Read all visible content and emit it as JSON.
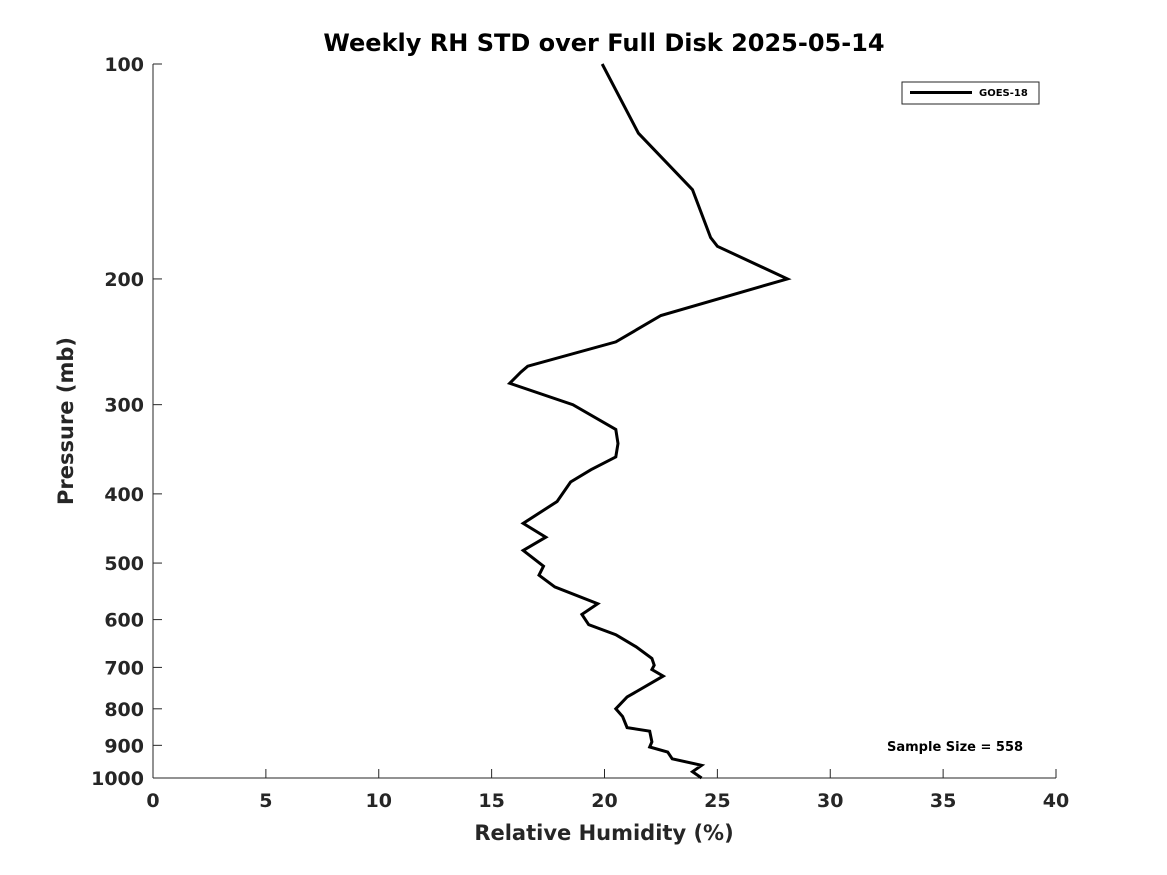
{
  "chart_data": {
    "type": "line",
    "title": "Weekly RH STD over Full Disk 2025-05-14",
    "xlabel": "Relative Humidity (%)",
    "ylabel": "Pressure (mb)",
    "xlim": [
      0,
      40
    ],
    "ylim": [
      100,
      1000
    ],
    "yscale": "log",
    "x_ticks": [
      {
        "value": 0,
        "label": "0"
      },
      {
        "value": 5,
        "label": "5"
      },
      {
        "value": 10,
        "label": "10"
      },
      {
        "value": 15,
        "label": "15"
      },
      {
        "value": 20,
        "label": "20"
      },
      {
        "value": 25,
        "label": "25"
      },
      {
        "value": 30,
        "label": "30"
      },
      {
        "value": 35,
        "label": "35"
      },
      {
        "value": 40,
        "label": "40"
      }
    ],
    "y_ticks": [
      {
        "value": 100,
        "label": "100"
      },
      {
        "value": 200,
        "label": "200"
      },
      {
        "value": 300,
        "label": "300"
      },
      {
        "value": 400,
        "label": "400"
      },
      {
        "value": 500,
        "label": "500"
      },
      {
        "value": 600,
        "label": "600"
      },
      {
        "value": 700,
        "label": "700"
      },
      {
        "value": 800,
        "label": "800"
      },
      {
        "value": 900,
        "label": "900"
      },
      {
        "value": 1000,
        "label": "1000"
      }
    ],
    "grid": false,
    "legend_position": "top-right",
    "series": [
      {
        "name": "GOES-18",
        "color": "#000000",
        "points": [
          {
            "x": 19.9,
            "p": 100
          },
          {
            "x": 21.5,
            "p": 125
          },
          {
            "x": 23.9,
            "p": 150
          },
          {
            "x": 24.7,
            "p": 175
          },
          {
            "x": 25.0,
            "p": 180
          },
          {
            "x": 28.1,
            "p": 200
          },
          {
            "x": 22.5,
            "p": 225
          },
          {
            "x": 20.5,
            "p": 245
          },
          {
            "x": 16.6,
            "p": 265
          },
          {
            "x": 16.3,
            "p": 270
          },
          {
            "x": 15.8,
            "p": 280
          },
          {
            "x": 18.6,
            "p": 300
          },
          {
            "x": 20.5,
            "p": 325
          },
          {
            "x": 20.6,
            "p": 340
          },
          {
            "x": 20.5,
            "p": 355
          },
          {
            "x": 19.4,
            "p": 370
          },
          {
            "x": 18.5,
            "p": 385
          },
          {
            "x": 17.9,
            "p": 410
          },
          {
            "x": 16.4,
            "p": 440
          },
          {
            "x": 17.4,
            "p": 460
          },
          {
            "x": 16.4,
            "p": 480
          },
          {
            "x": 17.3,
            "p": 505
          },
          {
            "x": 17.1,
            "p": 520
          },
          {
            "x": 17.8,
            "p": 540
          },
          {
            "x": 19.7,
            "p": 570
          },
          {
            "x": 19.0,
            "p": 590
          },
          {
            "x": 19.3,
            "p": 610
          },
          {
            "x": 20.5,
            "p": 630
          },
          {
            "x": 21.4,
            "p": 655
          },
          {
            "x": 22.1,
            "p": 680
          },
          {
            "x": 22.2,
            "p": 695
          },
          {
            "x": 22.1,
            "p": 705
          },
          {
            "x": 22.6,
            "p": 720
          },
          {
            "x": 21.0,
            "p": 770
          },
          {
            "x": 20.5,
            "p": 800
          },
          {
            "x": 20.8,
            "p": 820
          },
          {
            "x": 21.0,
            "p": 850
          },
          {
            "x": 22.0,
            "p": 860
          },
          {
            "x": 22.1,
            "p": 890
          },
          {
            "x": 22.0,
            "p": 905
          },
          {
            "x": 22.8,
            "p": 920
          },
          {
            "x": 23.0,
            "p": 940
          },
          {
            "x": 24.3,
            "p": 960
          },
          {
            "x": 23.9,
            "p": 980
          },
          {
            "x": 24.3,
            "p": 1000
          }
        ]
      }
    ],
    "annotations": [
      {
        "text": "Sample Size = 558",
        "position": "bottom-right"
      }
    ]
  }
}
